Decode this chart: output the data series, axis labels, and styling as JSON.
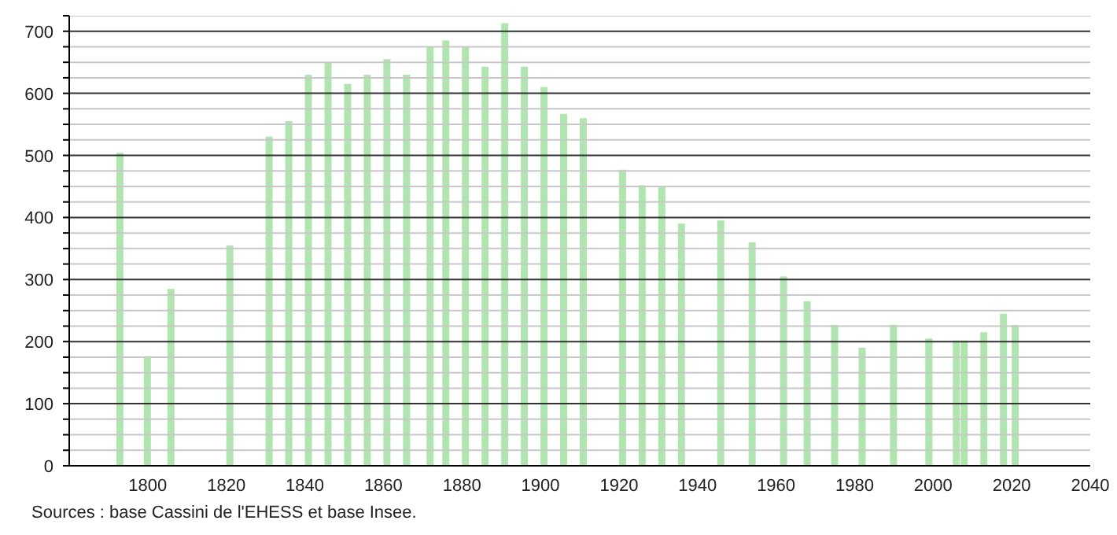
{
  "chart_data": {
    "type": "bar",
    "color": "#b0e5b0",
    "x": [
      1793,
      1800,
      1806,
      1821,
      1831,
      1836,
      1841,
      1846,
      1851,
      1856,
      1861,
      1866,
      1872,
      1876,
      1881,
      1886,
      1891,
      1896,
      1901,
      1906,
      1911,
      1921,
      1926,
      1931,
      1936,
      1946,
      1954,
      1962,
      1968,
      1975,
      1982,
      1990,
      1999,
      2006,
      2008,
      2013,
      2018,
      2021
    ],
    "values": [
      504,
      175,
      285,
      355,
      530,
      555,
      630,
      650,
      615,
      630,
      655,
      630,
      675,
      685,
      675,
      643,
      713,
      643,
      610,
      567,
      560,
      477,
      452,
      450,
      390,
      395,
      360,
      305,
      265,
      227,
      190,
      227,
      205,
      202,
      202,
      215,
      245,
      227
    ],
    "xlim": [
      1780,
      2040
    ],
    "xticks": [
      1800,
      1820,
      1840,
      1860,
      1880,
      1900,
      1920,
      1940,
      1960,
      1980,
      2000,
      2020,
      2040
    ],
    "ylim": [
      0,
      725
    ],
    "yticks": [
      0,
      {
        "value": 25,
        "label": null
      },
      {
        "value": 50,
        "label": null
      },
      {
        "value": 75,
        "label": null
      },
      100,
      {
        "value": 125,
        "label": null
      },
      {
        "value": 150,
        "label": null
      },
      {
        "value": 175,
        "label": null
      },
      200,
      {
        "value": 225,
        "label": null
      },
      {
        "value": 250,
        "label": null
      },
      {
        "value": 275,
        "label": null
      },
      300,
      {
        "value": 325,
        "label": null
      },
      {
        "value": 350,
        "label": null
      },
      {
        "value": 375,
        "label": null
      },
      400,
      {
        "value": 425,
        "label": null
      },
      {
        "value": 450,
        "label": null
      },
      {
        "value": 475,
        "label": null
      },
      500,
      {
        "value": 525,
        "label": null
      },
      {
        "value": 550,
        "label": null
      },
      {
        "value": 575,
        "label": null
      },
      600,
      {
        "value": 625,
        "label": null
      },
      {
        "value": 650,
        "label": null
      },
      {
        "value": 675,
        "label": null
      },
      700,
      {
        "value": 725,
        "label": null
      }
    ],
    "grid": "y",
    "annotations": [
      "Sources : base Cassini de l'EHESS et base Insee."
    ]
  }
}
